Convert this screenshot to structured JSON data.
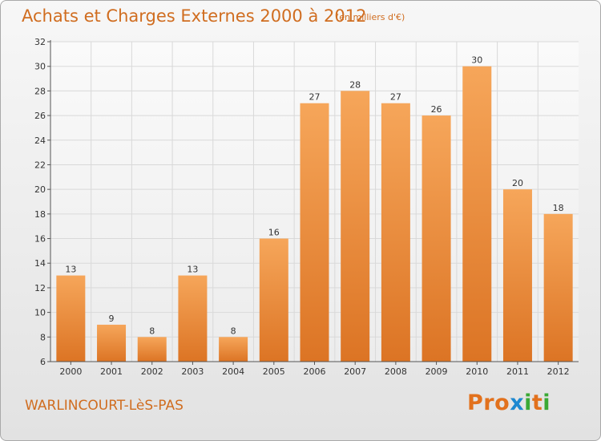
{
  "header": {
    "title": "Achats et Charges Externes 2000 à 2012",
    "unit": "(en milliers d'€)"
  },
  "footer": {
    "place": "WARLINCOURT-LèS-PAS",
    "logo": "Proxiti"
  },
  "colors": {
    "accent": "#d06d20",
    "bar_light": "#f6a65a",
    "bar_dark": "#dc7424",
    "logo_letters": [
      "#e2711d",
      "#e2711d",
      "#e2711d",
      "#1e88d0",
      "#3aa935",
      "#e2711d",
      "#3aa935"
    ]
  },
  "chart_data": {
    "type": "bar",
    "title": "Achats et Charges Externes 2000 à 2012",
    "subtitle": "(en milliers d'€)",
    "categories": [
      "2000",
      "2001",
      "2002",
      "2003",
      "2004",
      "2005",
      "2006",
      "2007",
      "2008",
      "2009",
      "2010",
      "2011",
      "2012"
    ],
    "values": [
      13,
      9,
      8,
      13,
      8,
      16,
      27,
      28,
      27,
      26,
      30,
      20,
      18
    ],
    "ylim": [
      6,
      32
    ],
    "yticks": [
      6,
      8,
      10,
      12,
      14,
      16,
      18,
      20,
      22,
      24,
      26,
      28,
      30,
      32
    ],
    "xlabel": "",
    "ylabel": "",
    "grid": true,
    "legend": "none"
  }
}
